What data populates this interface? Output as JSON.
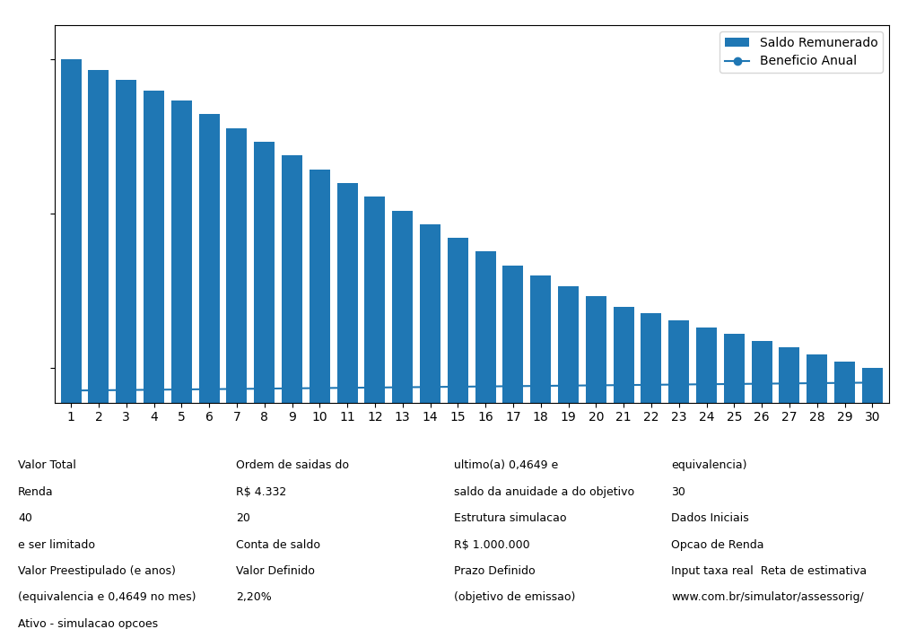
{
  "chart_data": {
    "type": "bar",
    "categories": [
      "1",
      "2",
      "3",
      "4",
      "5",
      "6",
      "7",
      "8",
      "9",
      "10",
      "11",
      "12",
      "13",
      "14",
      "15",
      "16",
      "17",
      "18",
      "19",
      "20",
      "21",
      "22",
      "23",
      "24",
      "25",
      "26",
      "27",
      "28",
      "29",
      "30"
    ],
    "series": [
      {
        "name": "Saldo Remunerado",
        "type": "bar",
        "values": [
          100,
          97,
          94,
          91,
          88,
          84,
          80,
          76,
          72,
          68,
          64,
          60,
          56,
          52,
          48,
          44,
          40,
          37,
          34,
          31,
          28,
          26,
          24,
          22,
          20,
          18,
          16,
          14,
          12,
          10
        ]
      },
      {
        "name": "Beneficio Anual",
        "type": "line",
        "marker": "o",
        "line_style": "solid",
        "values": [
          3.5,
          3.58,
          3.66,
          3.74,
          3.82,
          3.9,
          3.98,
          4.06,
          4.14,
          4.22,
          4.3,
          4.38,
          4.46,
          4.54,
          4.62,
          4.7,
          4.78,
          4.86,
          4.94,
          5.02,
          5.1,
          5.18,
          5.26,
          5.34,
          5.42,
          5.5,
          5.58,
          5.66,
          5.74,
          5.82
        ]
      }
    ],
    "ylim": [
      0,
      110
    ],
    "yticks": [
      10,
      55,
      100
    ],
    "tick_labels": "x",
    "grid": false,
    "legend": "upper right",
    "annotations": [
      "Valor Total",
      "Ordem de saidas do",
      "ultimo(a) 0,4649 e",
      "equivalencia)",
      "Renda",
      "R$ 4.332",
      "saldo da anuidade a do objetivo",
      "30",
      "40",
      "20",
      "Estrutura simulacao",
      "Dados Iniciais",
      "e ser limitado",
      "Conta de saldo",
      "R$ 1.000.000",
      "Opcao de Renda",
      "Valor Preestipulado (e anos)",
      "Valor Definido",
      "Prazo Definido",
      "Input taxa real  Reta de estimativa",
      "(equivalencia e 0,4649 no mes)",
      "2,20%",
      "(objetivo de emissao)",
      "www.com.br/simulator/assessorig/",
      "Ativo - simulacao opcoes"
    ]
  }
}
